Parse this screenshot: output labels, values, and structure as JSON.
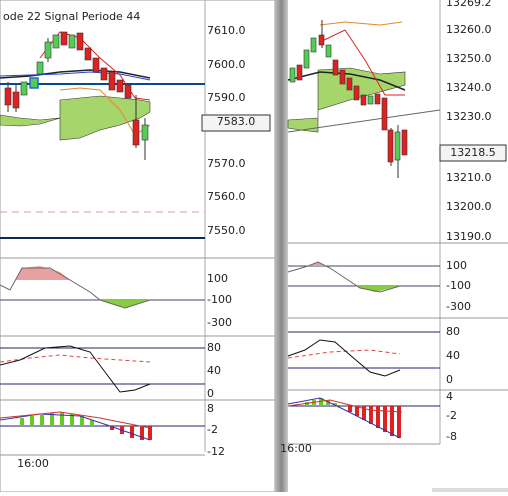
{
  "left": {
    "header": "ode  22    Signal Periode  44",
    "price_axis": [
      "7610.0",
      "7600.0",
      "7590.0",
      "7570.0",
      "7560.0",
      "7550.0"
    ],
    "price_box": "7583.0",
    "cci_axis": [
      "100",
      "-100",
      "-300"
    ],
    "stoch_axis": [
      "80",
      "40",
      "0"
    ],
    "macd_axis": [
      "8",
      "-2",
      "-12"
    ],
    "time": "16:00"
  },
  "right": {
    "price_axis": [
      "13269.2",
      "13260.0",
      "13250.0",
      "13240.0",
      "13230.0",
      "13210.0",
      "13200.0",
      "13190.0"
    ],
    "price_box": "13218.5",
    "cci_axis": [
      "100",
      "-100",
      "-300"
    ],
    "stoch_axis": [
      "80",
      "40",
      "0"
    ],
    "macd_axis": [
      "4",
      "-2",
      "-8"
    ],
    "time": "16:00"
  }
}
